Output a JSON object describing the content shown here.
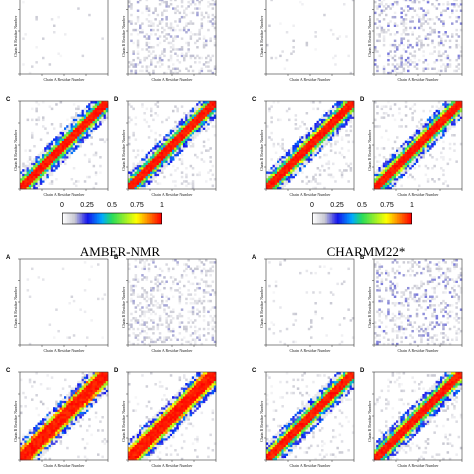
{
  "figure": {
    "methods": [
      {
        "name": "",
        "position": "top-left"
      },
      {
        "name": "",
        "position": "top-right"
      },
      {
        "name": "AMBER-NMR",
        "position": "bottom-left"
      },
      {
        "name": "CHARMM22*",
        "position": "bottom-right"
      }
    ],
    "panel_letters": [
      "A",
      "B",
      "C",
      "D"
    ],
    "xlabel": "Chain A Residue Number",
    "ylabel": "Chain B Residue Number",
    "colorbar_ticks": [
      "0",
      "0.25",
      "0.5",
      "0.75",
      "1"
    ]
  },
  "chart_data": {
    "type": "heatmap",
    "description_source": "contact probability maps, 4 force fields x panels A-D",
    "colorbar": {
      "range": [
        0,
        1
      ],
      "ticks": [
        0,
        0.25,
        0.5,
        0.75,
        1
      ],
      "colors": [
        "#ffffff",
        "#0000ff",
        "#00cc66",
        "#ffff00",
        "#ff0000"
      ]
    },
    "grid_size": 40,
    "panels": [
      {
        "group": 0,
        "letter": "A",
        "diagonal_band": false,
        "background_density": 0.03,
        "background_max": 0.12
      },
      {
        "group": 0,
        "letter": "B",
        "diagonal_band": false,
        "background_density": 0.3,
        "background_max": 0.15
      },
      {
        "group": 0,
        "letter": "C",
        "diagonal_band": true,
        "band_width": 2,
        "shoulder": 0.35,
        "background_density": 0.1,
        "background_max": 0.12
      },
      {
        "group": 0,
        "letter": "D",
        "diagonal_band": true,
        "band_width": 2,
        "shoulder": 0.35,
        "background_density": 0.12,
        "background_max": 0.12
      },
      {
        "group": 1,
        "letter": "A",
        "diagonal_band": false,
        "background_density": 0.03,
        "background_max": 0.12
      },
      {
        "group": 1,
        "letter": "B",
        "diagonal_band": false,
        "background_density": 0.32,
        "background_max": 0.18
      },
      {
        "group": 1,
        "letter": "C",
        "diagonal_band": true,
        "band_width": 2,
        "shoulder": 0.4,
        "background_density": 0.12,
        "background_max": 0.12
      },
      {
        "group": 1,
        "letter": "D",
        "diagonal_band": true,
        "band_width": 2,
        "shoulder": 0.4,
        "background_density": 0.12,
        "background_max": 0.12
      },
      {
        "group": 2,
        "letter": "A",
        "diagonal_band": false,
        "background_density": 0.02,
        "background_max": 0.1
      },
      {
        "group": 2,
        "letter": "B",
        "diagonal_band": false,
        "background_density": 0.3,
        "background_max": 0.15
      },
      {
        "group": 2,
        "letter": "C",
        "diagonal_band": true,
        "band_width": 3,
        "shoulder": 0.6,
        "background_density": 0.1,
        "background_max": 0.12
      },
      {
        "group": 2,
        "letter": "D",
        "diagonal_band": true,
        "band_width": 3,
        "shoulder": 0.55,
        "background_density": 0.1,
        "background_max": 0.12
      },
      {
        "group": 3,
        "letter": "A",
        "diagonal_band": false,
        "background_density": 0.03,
        "background_max": 0.12
      },
      {
        "group": 3,
        "letter": "B",
        "diagonal_band": false,
        "background_density": 0.32,
        "background_max": 0.18
      },
      {
        "group": 3,
        "letter": "C",
        "diagonal_band": true,
        "band_width": 2,
        "shoulder": 0.4,
        "background_density": 0.12,
        "background_max": 0.12
      },
      {
        "group": 3,
        "letter": "D",
        "diagonal_band": true,
        "band_width": 2,
        "shoulder": 0.4,
        "background_density": 0.12,
        "background_max": 0.12
      }
    ]
  }
}
